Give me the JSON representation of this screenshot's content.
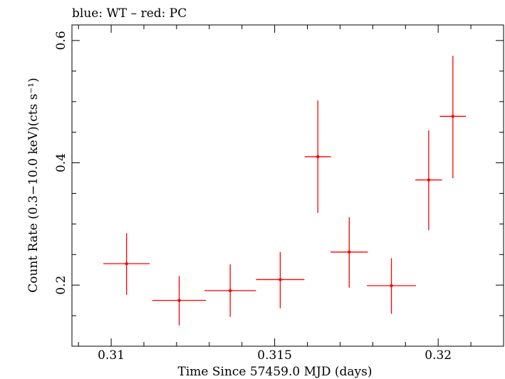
{
  "chart_data": {
    "type": "scatter",
    "title": "blue: WT – red: PC",
    "xlabel": "Time Since 57459.0 MJD (days)",
    "ylabel": "Count Rate (0.3−10.0 keV)(cts s⁻¹)",
    "xlim": [
      0.3088,
      0.322
    ],
    "ylim": [
      0.1,
      0.6255
    ],
    "x_ticks": [
      0.31,
      0.315,
      0.32
    ],
    "x_tick_labels": [
      "0.31",
      "0.315",
      "0.32"
    ],
    "y_ticks": [
      0.2,
      0.4,
      0.6
    ],
    "y_tick_labels": [
      "0.2",
      "0.4",
      "0.6"
    ],
    "grid": false,
    "series": [
      {
        "name": "PC",
        "color": "#ff0000",
        "points": [
          {
            "x": 0.31047,
            "xerr": 0.00071,
            "y": 0.235,
            "yerr_lo": 0.051,
            "yerr_hi": 0.05
          },
          {
            "x": 0.31208,
            "xerr": 0.00082,
            "y": 0.175,
            "yerr_lo": 0.041,
            "yerr_hi": 0.04
          },
          {
            "x": 0.31364,
            "xerr": 0.00079,
            "y": 0.191,
            "yerr_lo": 0.043,
            "yerr_hi": 0.043
          },
          {
            "x": 0.31517,
            "xerr": 0.00074,
            "y": 0.209,
            "yerr_lo": 0.047,
            "yerr_hi": 0.045
          },
          {
            "x": 0.31632,
            "xerr": 0.0004,
            "y": 0.41,
            "yerr_lo": 0.092,
            "yerr_hi": 0.092
          },
          {
            "x": 0.31728,
            "xerr": 0.00057,
            "y": 0.254,
            "yerr_lo": 0.058,
            "yerr_hi": 0.057
          },
          {
            "x": 0.31857,
            "xerr": 0.00075,
            "y": 0.199,
            "yerr_lo": 0.046,
            "yerr_hi": 0.045
          },
          {
            "x": 0.31971,
            "xerr": 0.00041,
            "y": 0.372,
            "yerr_lo": 0.082,
            "yerr_hi": 0.081
          },
          {
            "x": 0.32045,
            "xerr": 0.0004,
            "y": 0.476,
            "yerr_lo": 0.101,
            "yerr_hi": 0.099
          }
        ]
      }
    ]
  }
}
